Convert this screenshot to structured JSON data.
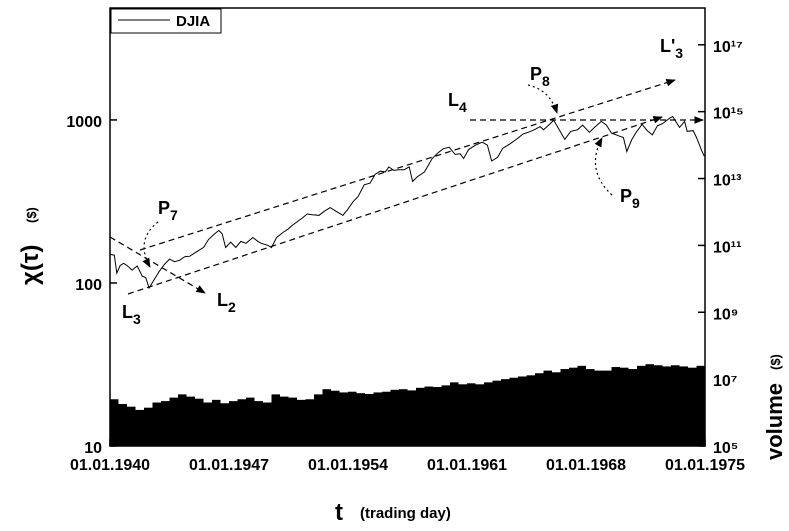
{
  "chart_data": {
    "type": "line",
    "y_label": "χ(τ)",
    "y_unit": "($)",
    "y2_label": "volume",
    "y2_unit": "($)",
    "x_label": "t",
    "x_unit": "(trading day)",
    "log_y": true,
    "log_y2": true,
    "legend": "upper left",
    "xlim": [
      1940,
      1975
    ],
    "xticks": [
      {
        "value": 1940,
        "label": "01.01.1940"
      },
      {
        "value": 1947,
        "label": "01.01.1947"
      },
      {
        "value": 1954,
        "label": "01.01.1954"
      },
      {
        "value": 1961,
        "label": "01.01.1961"
      },
      {
        "value": 1968,
        "label": "01.01.1968"
      },
      {
        "value": 1975,
        "label": "01.01.1975"
      }
    ],
    "ylim": [
      10,
      4860
    ],
    "yticks": [
      10,
      100,
      1000
    ],
    "y2lim": [
      100000,
      1.26e+18
    ],
    "y2ticks": [
      {
        "value": 100000,
        "label": "10⁵"
      },
      {
        "value": 10000000,
        "label": "10⁷"
      },
      {
        "value": 1000000000,
        "label": "10⁹"
      },
      {
        "value": 100000000000,
        "label": "10¹¹"
      },
      {
        "value": 10000000000000,
        "label": "10¹³"
      },
      {
        "value": 1000000000000000,
        "label": "10¹⁵"
      },
      {
        "value": 100000000000000000,
        "label": "10¹⁷"
      }
    ],
    "series": [
      {
        "name": "DJIA",
        "color": "#000000",
        "x": [
          1940.0,
          1940.25,
          1940.4,
          1940.6,
          1940.8,
          1941.0,
          1941.3,
          1941.6,
          1941.9,
          1942.1,
          1942.3,
          1942.6,
          1942.9,
          1943.2,
          1943.5,
          1943.8,
          1944.1,
          1944.4,
          1944.7,
          1944.95,
          1945.2,
          1945.5,
          1945.8,
          1946.1,
          1946.4,
          1946.6,
          1946.8,
          1947.1,
          1947.4,
          1947.7,
          1948.0,
          1948.4,
          1948.7,
          1948.9,
          1949.3,
          1949.5,
          1949.8,
          1950.2,
          1950.5,
          1950.7,
          1950.95,
          1951.3,
          1951.6,
          1951.9,
          1952.3,
          1952.6,
          1952.95,
          1953.3,
          1953.7,
          1953.95,
          1954.3,
          1954.6,
          1954.95,
          1955.3,
          1955.6,
          1955.9,
          1956.2,
          1956.4,
          1956.7,
          1956.95,
          1957.3,
          1957.6,
          1957.8,
          1958.1,
          1958.5,
          1958.95,
          1959.3,
          1959.6,
          1959.95,
          1960.3,
          1960.6,
          1960.8,
          1961.1,
          1961.5,
          1961.9,
          1962.2,
          1962.45,
          1962.8,
          1963.1,
          1963.5,
          1963.9,
          1964.3,
          1964.6,
          1964.95,
          1965.3,
          1965.5,
          1965.9,
          1966.1,
          1966.4,
          1966.75,
          1967.1,
          1967.5,
          1967.8,
          1968.2,
          1968.5,
          1968.9,
          1969.2,
          1969.5,
          1969.9,
          1970.2,
          1970.4,
          1970.7,
          1970.95,
          1971.3,
          1971.6,
          1971.9,
          1972.2,
          1972.5,
          1972.95,
          1973.1,
          1973.5,
          1973.8,
          1973.95,
          1974.3,
          1974.5,
          1974.8,
          1974.95
        ],
        "values": [
          150,
          148,
          115,
          128,
          132,
          128,
          120,
          127,
          110,
          108,
          93,
          105,
          118,
          130,
          140,
          135,
          138,
          145,
          146,
          152,
          158,
          165,
          185,
          198,
          210,
          200,
          165,
          178,
          165,
          180,
          175,
          190,
          180,
          175,
          170,
          165,
          190,
          205,
          215,
          225,
          235,
          250,
          265,
          262,
          260,
          275,
          290,
          275,
          260,
          280,
          315,
          340,
          400,
          410,
          465,
          485,
          480,
          515,
          490,
          495,
          495,
          515,
          420,
          450,
          480,
          580,
          630,
          665,
          680,
          615,
          620,
          580,
          660,
          700,
          730,
          700,
          560,
          590,
          670,
          710,
          760,
          820,
          840,
          870,
          910,
          870,
          950,
          995,
          880,
          760,
          850,
          870,
          930,
          840,
          900,
          980,
          930,
          830,
          800,
          780,
          640,
          760,
          840,
          940,
          860,
          810,
          920,
          950,
          1030,
          1050,
          900,
          980,
          850,
          860,
          780,
          650,
          600
        ]
      },
      {
        "name": "volume",
        "color": "#000000",
        "axis": "y2",
        "x": [
          1940.0,
          1940.5,
          1941.0,
          1941.5,
          1942.0,
          1942.5,
          1943.0,
          1943.5,
          1944.0,
          1944.5,
          1945.0,
          1945.5,
          1946.0,
          1946.5,
          1947.0,
          1947.5,
          1948.0,
          1948.5,
          1949.0,
          1949.5,
          1950.0,
          1950.5,
          1951.0,
          1951.5,
          1952.0,
          1952.5,
          1953.0,
          1953.5,
          1954.0,
          1954.5,
          1955.0,
          1955.5,
          1956.0,
          1956.5,
          1957.0,
          1957.5,
          1958.0,
          1958.5,
          1959.0,
          1959.5,
          1960.0,
          1960.5,
          1961.0,
          1961.5,
          1962.0,
          1962.5,
          1963.0,
          1963.5,
          1964.0,
          1964.5,
          1965.0,
          1965.5,
          1966.0,
          1966.5,
          1967.0,
          1967.5,
          1968.0,
          1968.5,
          1969.0,
          1969.5,
          1970.0,
          1970.5,
          1971.0,
          1971.5,
          1972.0,
          1972.5,
          1973.0,
          1973.5,
          1974.0,
          1974.5
        ],
        "values": [
          2500000,
          1800000,
          1500000,
          1200000,
          1400000,
          2000000,
          2200000,
          2800000,
          3500000,
          3000000,
          2600000,
          2000000,
          2400000,
          1900000,
          2200000,
          2500000,
          2800000,
          2200000,
          2000000,
          3500000,
          3000000,
          2800000,
          2400000,
          2500000,
          3500000,
          5000000,
          4500000,
          4000000,
          4200000,
          3800000,
          3600000,
          4000000,
          4200000,
          4800000,
          5000000,
          4600000,
          5500000,
          6000000,
          5800000,
          6500000,
          8000000,
          7000000,
          7500000,
          7000000,
          8000000,
          9000000,
          10000000,
          11000000,
          12000000,
          13000000,
          15000000,
          18000000,
          16000000,
          20000000,
          22000000,
          25000000,
          20000000,
          18000000,
          18000000,
          23000000,
          22000000,
          20000000,
          25000000,
          28000000,
          26000000,
          24000000,
          26000000,
          24000000,
          22000000,
          25000000
        ]
      }
    ],
    "annotations": [
      {
        "text": "P",
        "sub": "7"
      },
      {
        "text": "L",
        "sub": "3"
      },
      {
        "text": "L",
        "sub": "2"
      },
      {
        "text": "L",
        "sub": "4"
      },
      {
        "text": "P",
        "sub": "8"
      },
      {
        "text": "L'",
        "sub": "3"
      },
      {
        "text": "P",
        "sub": "9"
      }
    ]
  }
}
